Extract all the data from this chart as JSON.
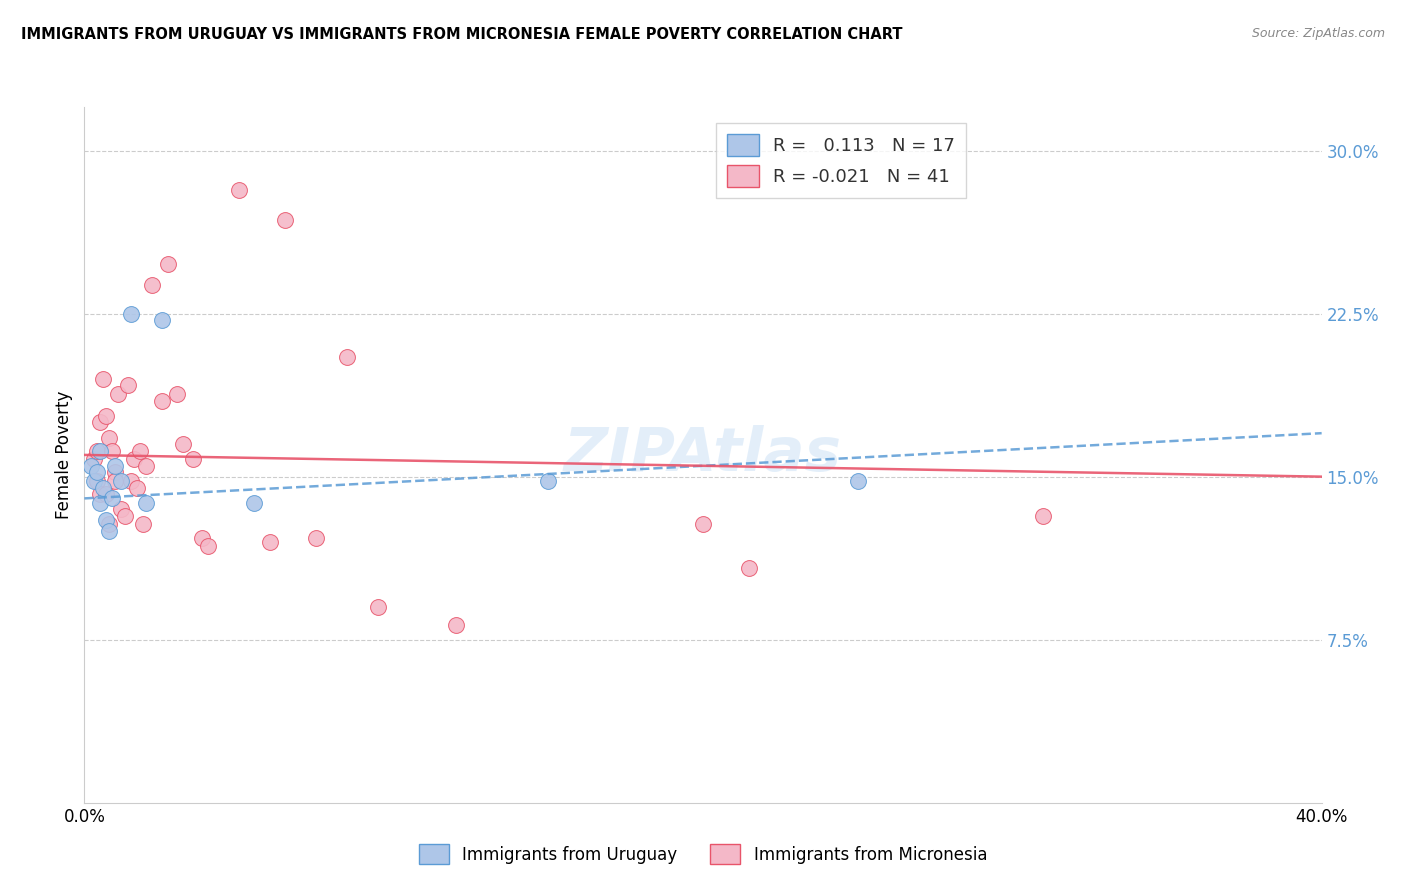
{
  "title": "IMMIGRANTS FROM URUGUAY VS IMMIGRANTS FROM MICRONESIA FEMALE POVERTY CORRELATION CHART",
  "source": "Source: ZipAtlas.com",
  "ylabel": "Female Poverty",
  "yticks": [
    0.0,
    0.075,
    0.15,
    0.225,
    0.3
  ],
  "ytick_labels": [
    "",
    "7.5%",
    "15.0%",
    "22.5%",
    "30.0%"
  ],
  "xticks": [
    0.0,
    0.1,
    0.2,
    0.3,
    0.4
  ],
  "xlim": [
    0.0,
    0.4
  ],
  "ylim": [
    0.0,
    0.32
  ],
  "uruguay_R": 0.113,
  "uruguay_N": 17,
  "micronesia_R": -0.021,
  "micronesia_N": 41,
  "uruguay_color": "#aec6e8",
  "micronesia_color": "#f4b8c8",
  "uruguay_line_color": "#5b9bd5",
  "micronesia_line_color": "#e8546a",
  "uruguay_x": [
    0.002,
    0.003,
    0.004,
    0.005,
    0.005,
    0.006,
    0.007,
    0.008,
    0.009,
    0.01,
    0.012,
    0.015,
    0.02,
    0.025,
    0.055,
    0.15,
    0.25
  ],
  "uruguay_y": [
    0.155,
    0.148,
    0.152,
    0.162,
    0.138,
    0.145,
    0.13,
    0.125,
    0.14,
    0.155,
    0.148,
    0.225,
    0.138,
    0.222,
    0.138,
    0.148,
    0.148
  ],
  "micronesia_x": [
    0.003,
    0.004,
    0.004,
    0.005,
    0.005,
    0.006,
    0.007,
    0.007,
    0.008,
    0.008,
    0.009,
    0.01,
    0.01,
    0.011,
    0.012,
    0.013,
    0.014,
    0.015,
    0.016,
    0.017,
    0.018,
    0.019,
    0.02,
    0.022,
    0.025,
    0.027,
    0.03,
    0.032,
    0.035,
    0.038,
    0.04,
    0.05,
    0.06,
    0.065,
    0.075,
    0.085,
    0.095,
    0.12,
    0.2,
    0.215,
    0.31
  ],
  "micronesia_y": [
    0.158,
    0.162,
    0.148,
    0.175,
    0.142,
    0.195,
    0.178,
    0.142,
    0.168,
    0.128,
    0.162,
    0.152,
    0.148,
    0.188,
    0.135,
    0.132,
    0.192,
    0.148,
    0.158,
    0.145,
    0.162,
    0.128,
    0.155,
    0.238,
    0.185,
    0.248,
    0.188,
    0.165,
    0.158,
    0.122,
    0.118,
    0.282,
    0.12,
    0.268,
    0.122,
    0.205,
    0.09,
    0.082,
    0.128,
    0.108,
    0.132
  ]
}
